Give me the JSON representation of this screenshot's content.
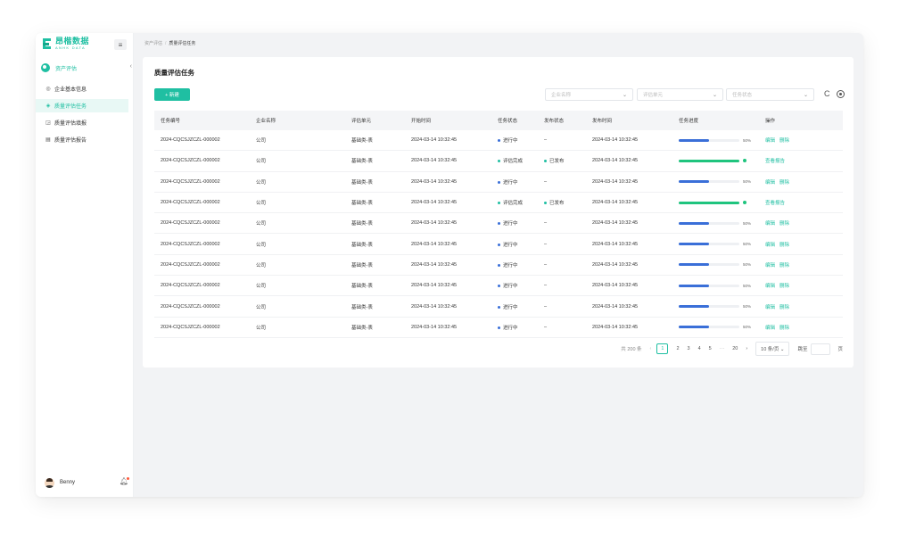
{
  "sidebar": {
    "logo_cn": "昂楷数据",
    "logo_en": "ANHK DATA",
    "menu_icon": "≡",
    "module_label": "资产评估",
    "collapse_icon": "‹",
    "items": [
      {
        "icon": "◎",
        "label": "企业基本信息"
      },
      {
        "icon": "◈",
        "label": "质量评估任务"
      },
      {
        "icon": "◲",
        "label": "质量评估填报"
      },
      {
        "icon": "▤",
        "label": "质量评估报告"
      }
    ],
    "user_name": "Benny",
    "bell_icon": "♫"
  },
  "breadcrumb": {
    "parent": "资产评估",
    "sep": "/",
    "current": "质量评估任务"
  },
  "page_title": "质量评估任务",
  "toolbar": {
    "new_label": "+ 新建",
    "filters": [
      {
        "placeholder": "企业名称"
      },
      {
        "placeholder": "评估单元"
      },
      {
        "placeholder": "任务状态"
      }
    ],
    "chevron": "⌄",
    "refresh_icon": "C"
  },
  "table": {
    "columns": [
      "任务编号",
      "企业名称",
      "评估单元",
      "开始时间",
      "任务状态",
      "发布状态",
      "发布时间",
      "任务进度",
      "操作"
    ],
    "rows": [
      {
        "id": "2024-CQCSJZCZL-000002",
        "company": "公司",
        "unit": "基础类-表",
        "start": "2024-03-14 10:32:45",
        "status": "进行中",
        "status_color": "#3a6fd8",
        "publish": "–",
        "publish_color": "",
        "pub_time": "2024-03-14 10:32:45",
        "progress": 0.5,
        "progress_label": "50%",
        "actions": [
          "编辑",
          "删除"
        ]
      },
      {
        "id": "2024-CQCSJZCZL-000002",
        "company": "公司",
        "unit": "基础类-表",
        "start": "2024-03-14 10:32:45",
        "status": "评估完成",
        "status_color": "#1fbfa2",
        "publish": "已发布",
        "publish_color": "#1fbfa2",
        "pub_time": "2024-03-14 10:32:45",
        "progress": 1.0,
        "progress_label": "",
        "actions": [
          "查看报告"
        ]
      },
      {
        "id": "2024-CQCSJZCZL-000002",
        "company": "公司",
        "unit": "基础类-表",
        "start": "2024-03-14 10:32:45",
        "status": "进行中",
        "status_color": "#3a6fd8",
        "publish": "–",
        "publish_color": "",
        "pub_time": "2024-03-14 10:32:45",
        "progress": 0.5,
        "progress_label": "50%",
        "actions": [
          "编辑",
          "删除"
        ]
      },
      {
        "id": "2024-CQCSJZCZL-000002",
        "company": "公司",
        "unit": "基础类-表",
        "start": "2024-03-14 10:32:45",
        "status": "评估完成",
        "status_color": "#1fbfa2",
        "publish": "已发布",
        "publish_color": "#1fbfa2",
        "pub_time": "2024-03-14 10:32:45",
        "progress": 1.0,
        "progress_label": "",
        "actions": [
          "查看报告"
        ]
      },
      {
        "id": "2024-CQCSJZCZL-000002",
        "company": "公司",
        "unit": "基础类-表",
        "start": "2024-03-14 10:32:45",
        "status": "进行中",
        "status_color": "#3a6fd8",
        "publish": "–",
        "publish_color": "",
        "pub_time": "2024-03-14 10:32:45",
        "progress": 0.5,
        "progress_label": "50%",
        "actions": [
          "编辑",
          "删除"
        ]
      },
      {
        "id": "2024-CQCSJZCZL-000002",
        "company": "公司",
        "unit": "基础类-表",
        "start": "2024-03-14 10:32:45",
        "status": "进行中",
        "status_color": "#3a6fd8",
        "publish": "–",
        "publish_color": "",
        "pub_time": "2024-03-14 10:32:45",
        "progress": 0.5,
        "progress_label": "50%",
        "actions": [
          "编辑",
          "删除"
        ]
      },
      {
        "id": "2024-CQCSJZCZL-000002",
        "company": "公司",
        "unit": "基础类-表",
        "start": "2024-03-14 10:32:45",
        "status": "进行中",
        "status_color": "#3a6fd8",
        "publish": "–",
        "publish_color": "",
        "pub_time": "2024-03-14 10:32:45",
        "progress": 0.5,
        "progress_label": "50%",
        "actions": [
          "编辑",
          "删除"
        ]
      },
      {
        "id": "2024-CQCSJZCZL-000002",
        "company": "公司",
        "unit": "基础类-表",
        "start": "2024-03-14 10:32:45",
        "status": "进行中",
        "status_color": "#3a6fd8",
        "publish": "–",
        "publish_color": "",
        "pub_time": "2024-03-14 10:32:45",
        "progress": 0.5,
        "progress_label": "50%",
        "actions": [
          "编辑",
          "删除"
        ]
      },
      {
        "id": "2024-CQCSJZCZL-000002",
        "company": "公司",
        "unit": "基础类-表",
        "start": "2024-03-14 10:32:45",
        "status": "进行中",
        "status_color": "#3a6fd8",
        "publish": "–",
        "publish_color": "",
        "pub_time": "2024-03-14 10:32:45",
        "progress": 0.5,
        "progress_label": "50%",
        "actions": [
          "编辑",
          "删除"
        ]
      },
      {
        "id": "2024-CQCSJZCZL-000002",
        "company": "公司",
        "unit": "基础类-表",
        "start": "2024-03-14 10:32:45",
        "status": "进行中",
        "status_color": "#3a6fd8",
        "publish": "–",
        "publish_color": "",
        "pub_time": "2024-03-14 10:32:45",
        "progress": 0.5,
        "progress_label": "50%",
        "actions": [
          "编辑",
          "删除"
        ]
      }
    ]
  },
  "pagination": {
    "total": "共 200 条",
    "prev": "‹",
    "pages": [
      "1",
      "2",
      "3",
      "4",
      "5"
    ],
    "current": "1",
    "ellipsis": "···",
    "last": "20",
    "next": "›",
    "page_size": "10 条/页 ⌄",
    "jump_label": "跳至",
    "jump_suffix": "页"
  },
  "colors": {
    "accent": "#1fbfa2",
    "progress_blue": "#3a6fd8",
    "progress_green": "#1fc47e"
  }
}
